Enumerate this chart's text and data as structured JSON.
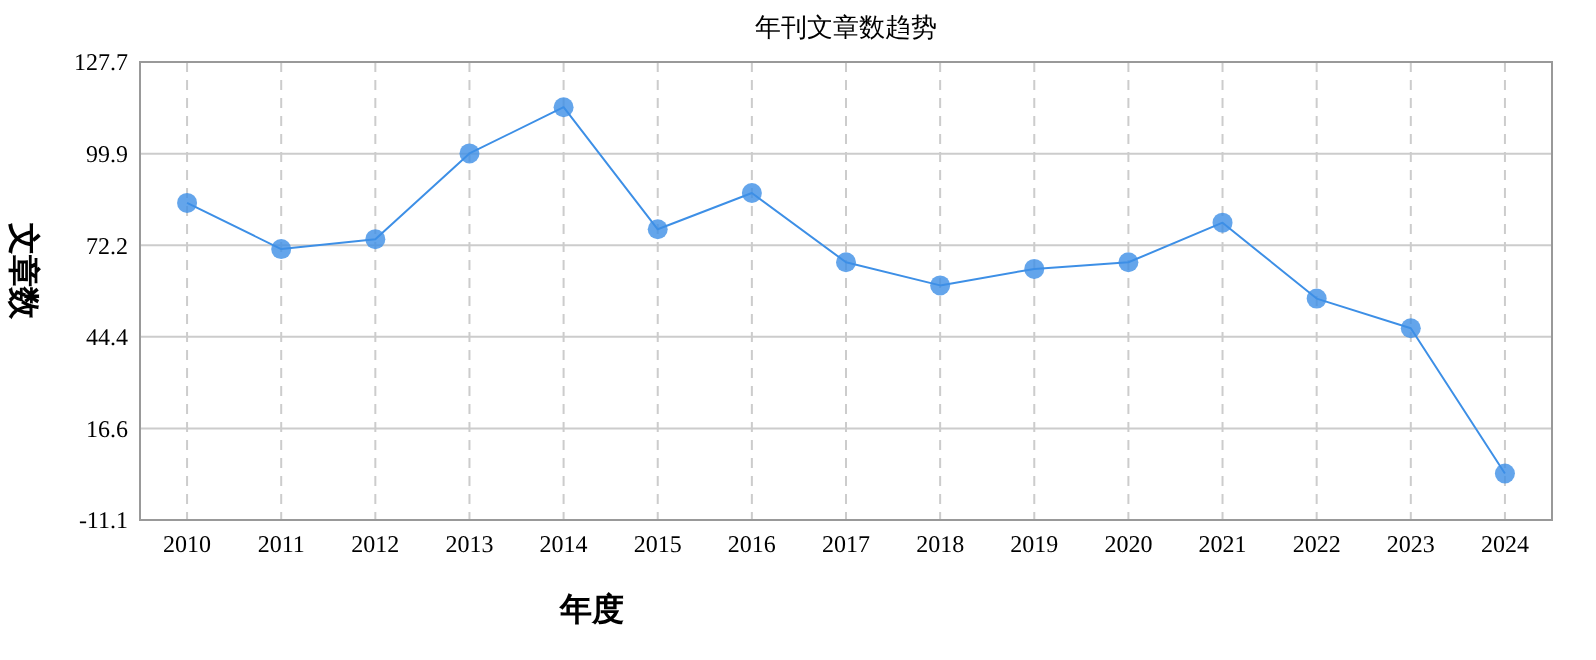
{
  "chart_data": {
    "type": "line",
    "title": "年刊文章数趋势",
    "xlabel": "年度",
    "ylabel": "文章数",
    "categories": [
      "2010",
      "2011",
      "2012",
      "2013",
      "2014",
      "2015",
      "2016",
      "2017",
      "2018",
      "2019",
      "2020",
      "2021",
      "2022",
      "2023",
      "2024"
    ],
    "series": [
      {
        "color": "#3d8fe6",
        "values": [
          85,
          71,
          74,
          100,
          114,
          77,
          88,
          67,
          60,
          65,
          67,
          79,
          56,
          47,
          3
        ]
      }
    ],
    "ylim": [
      -11.1,
      127.7
    ],
    "yticks": [
      -11.1,
      16.6,
      44.4,
      72.2,
      99.9,
      127.7
    ],
    "grid": true,
    "marker": "circle",
    "line_style": "solid"
  }
}
